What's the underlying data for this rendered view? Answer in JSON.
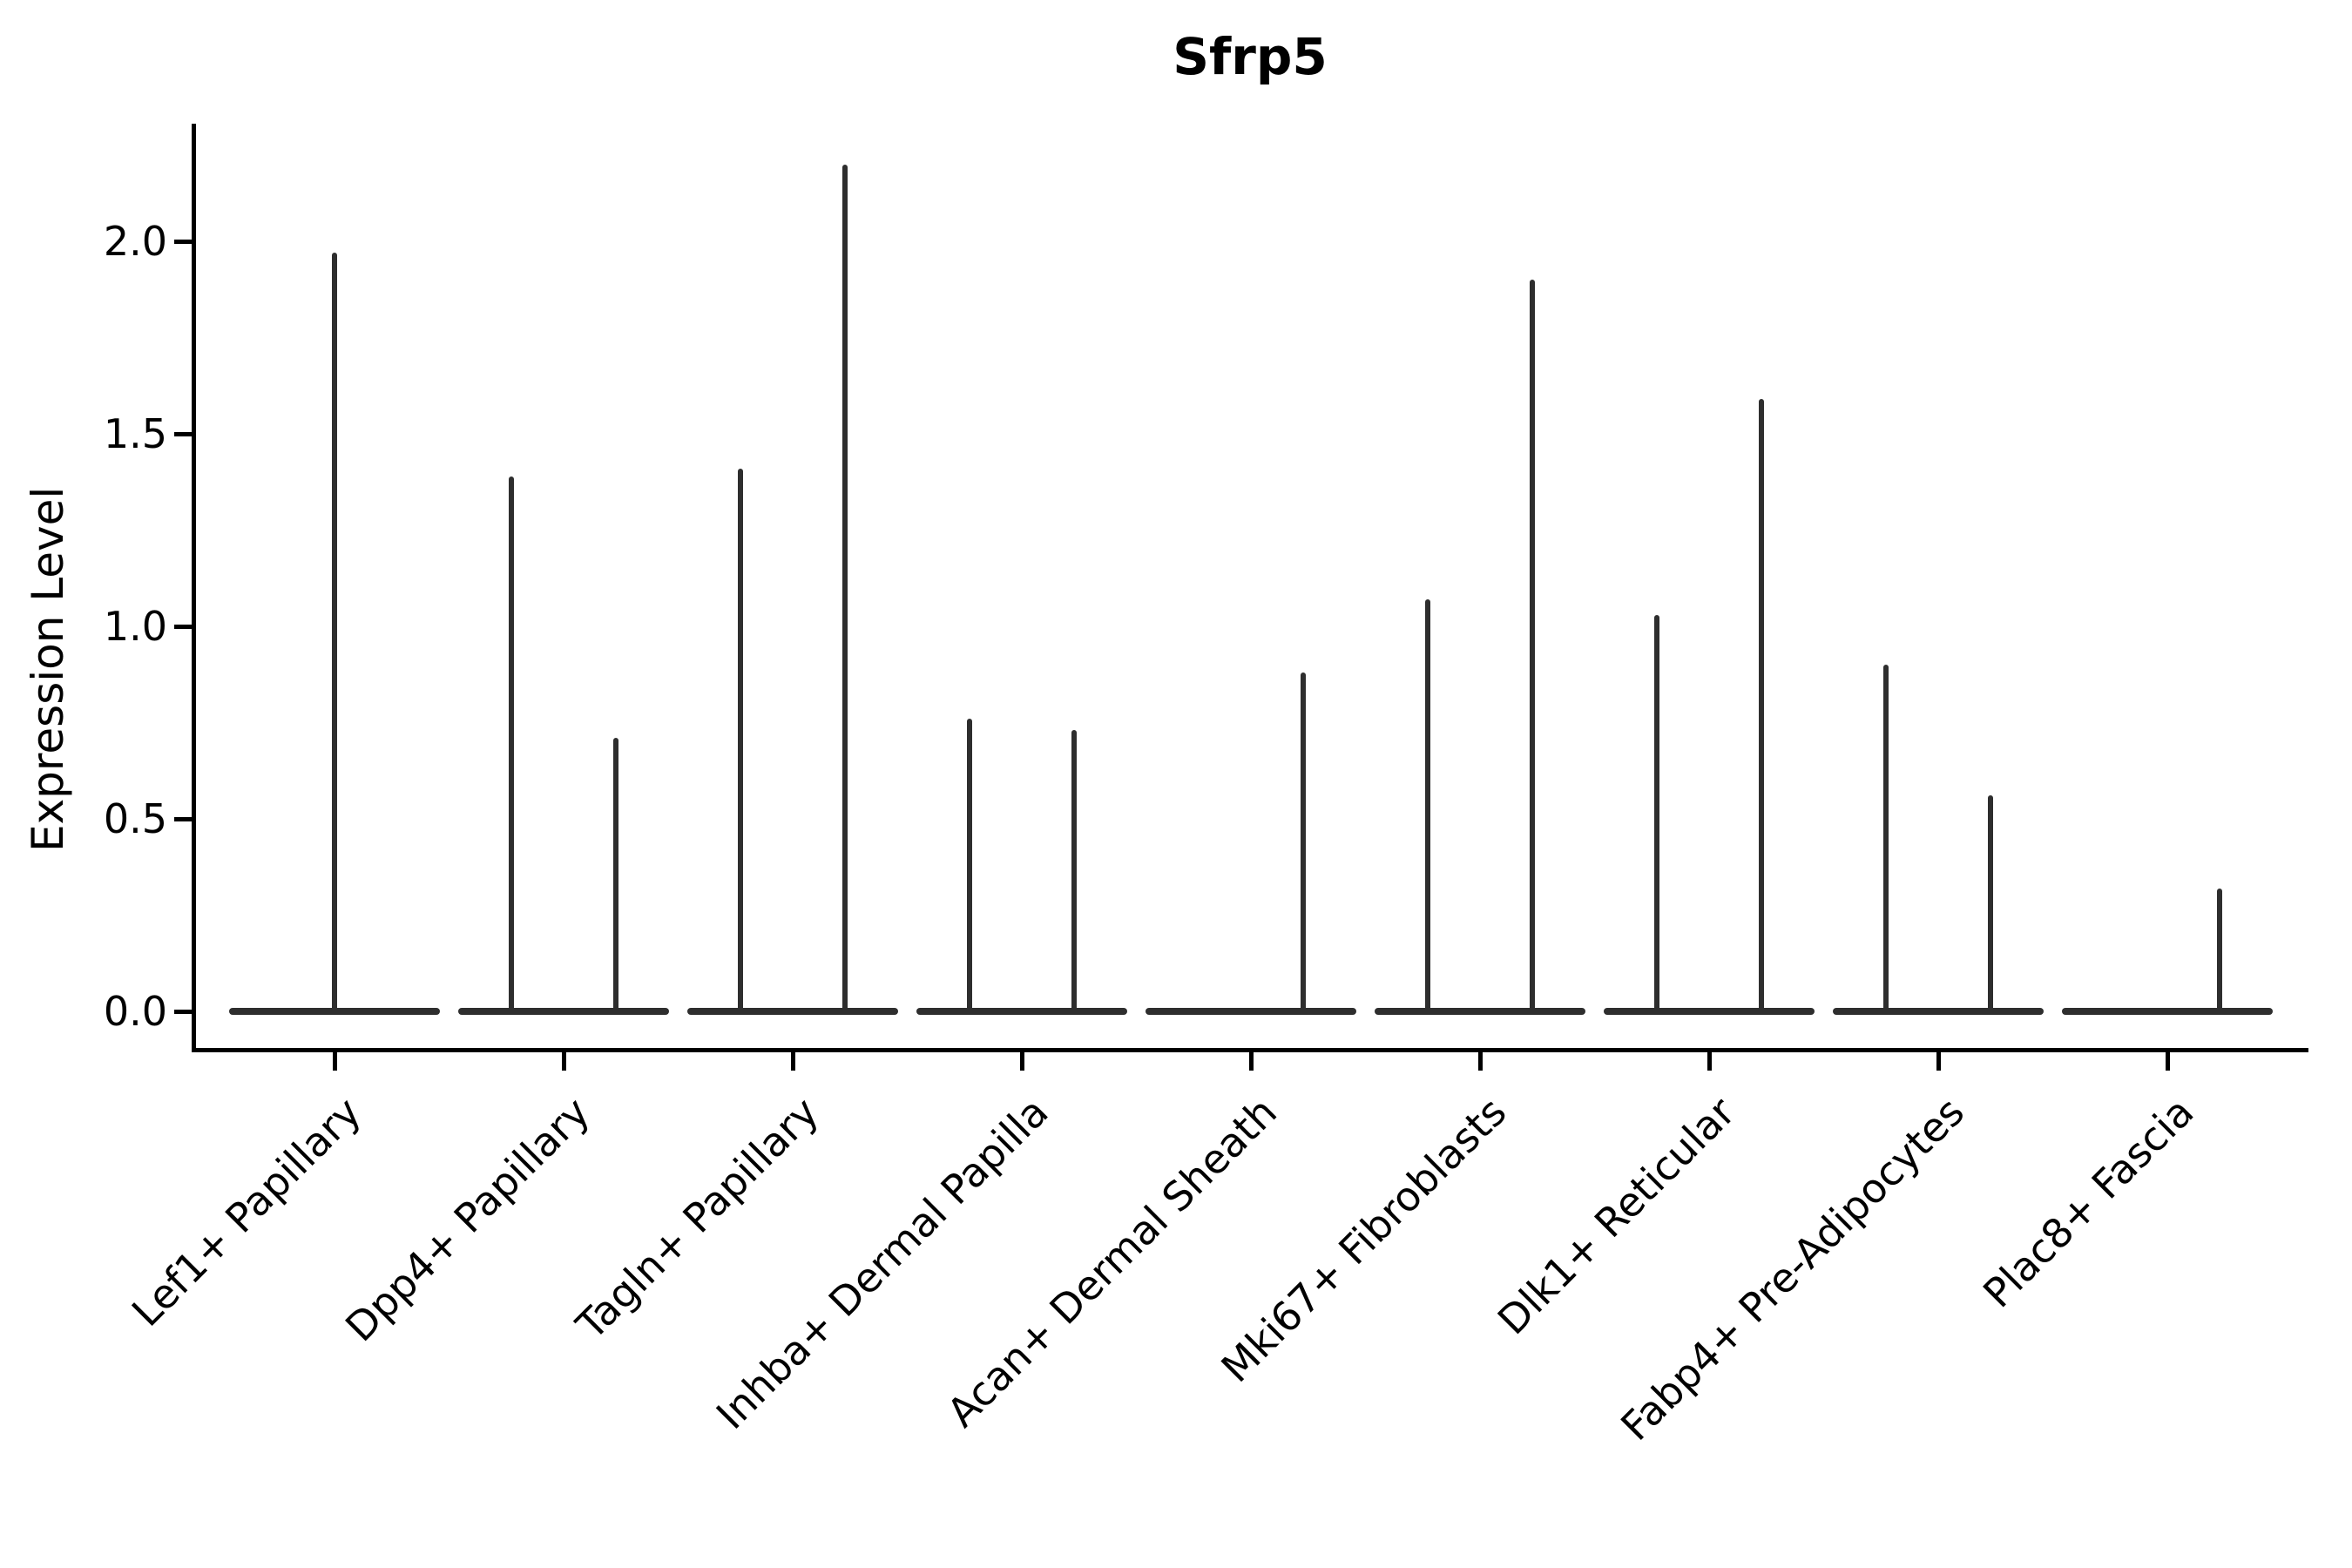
{
  "chart_data": {
    "type": "violin",
    "title": "Sfrp5",
    "xlabel": "",
    "ylabel": "Expression Level",
    "yticks": [
      "0.0",
      "0.5",
      "1.0",
      "1.5",
      "2.0"
    ],
    "ylim": [
      -0.09,
      2.3
    ],
    "grid": false,
    "legend": "none",
    "categories": [
      "Lef1+ Papillary",
      "Dpp4+ Papillary",
      "Tagln+ Papillary",
      "Inhba+ Dermal Papilla",
      "Acan+ Dermal Sheath",
      "Mki67+ Fibroblasts",
      "Dlk1+ Reticular",
      "Fabp4+ Pre-Adipocytes",
      "Plac8+ Fascia"
    ],
    "violins": [
      {
        "category": "Lef1+ Papillary",
        "baseline_value": 0,
        "spikes": [
          {
            "position": "center",
            "max": 1.97
          }
        ]
      },
      {
        "category": "Dpp4+ Papillary",
        "baseline_value": 0,
        "spikes": [
          {
            "position": "left",
            "max": 1.39
          },
          {
            "position": "right",
            "max": 0.71
          }
        ]
      },
      {
        "category": "Tagln+ Papillary",
        "baseline_value": 0,
        "spikes": [
          {
            "position": "left",
            "max": 1.41
          },
          {
            "position": "right",
            "max": 2.2
          }
        ]
      },
      {
        "category": "Inhba+ Dermal Papilla",
        "baseline_value": 0,
        "spikes": [
          {
            "position": "left",
            "max": 0.76
          },
          {
            "position": "right",
            "max": 0.73
          }
        ]
      },
      {
        "category": "Acan+ Dermal Sheath",
        "baseline_value": 0,
        "spikes": [
          {
            "position": "right",
            "max": 0.88
          }
        ]
      },
      {
        "category": "Mki67+ Fibroblasts",
        "baseline_value": 0,
        "spikes": [
          {
            "position": "left",
            "max": 1.07
          },
          {
            "position": "right",
            "max": 1.9
          }
        ]
      },
      {
        "category": "Dlk1+ Reticular",
        "baseline_value": 0,
        "spikes": [
          {
            "position": "left",
            "max": 1.03
          },
          {
            "position": "right",
            "max": 1.59
          }
        ]
      },
      {
        "category": "Fabp4+ Pre-Adipocytes",
        "baseline_value": 0,
        "spikes": [
          {
            "position": "left",
            "max": 0.9
          },
          {
            "position": "right",
            "max": 0.56
          }
        ]
      },
      {
        "category": "Plac8+ Fascia",
        "baseline_value": 0,
        "spikes": [
          {
            "position": "right",
            "max": 0.32
          }
        ]
      }
    ],
    "notes": "All violins are collapsed to a flat bar at expression 0 with thin density spikes reaching the listed max expression values."
  },
  "colors": {
    "violin": "#2e2e2e",
    "axis": "#000000",
    "text": "#000000",
    "background": "#ffffff"
  }
}
